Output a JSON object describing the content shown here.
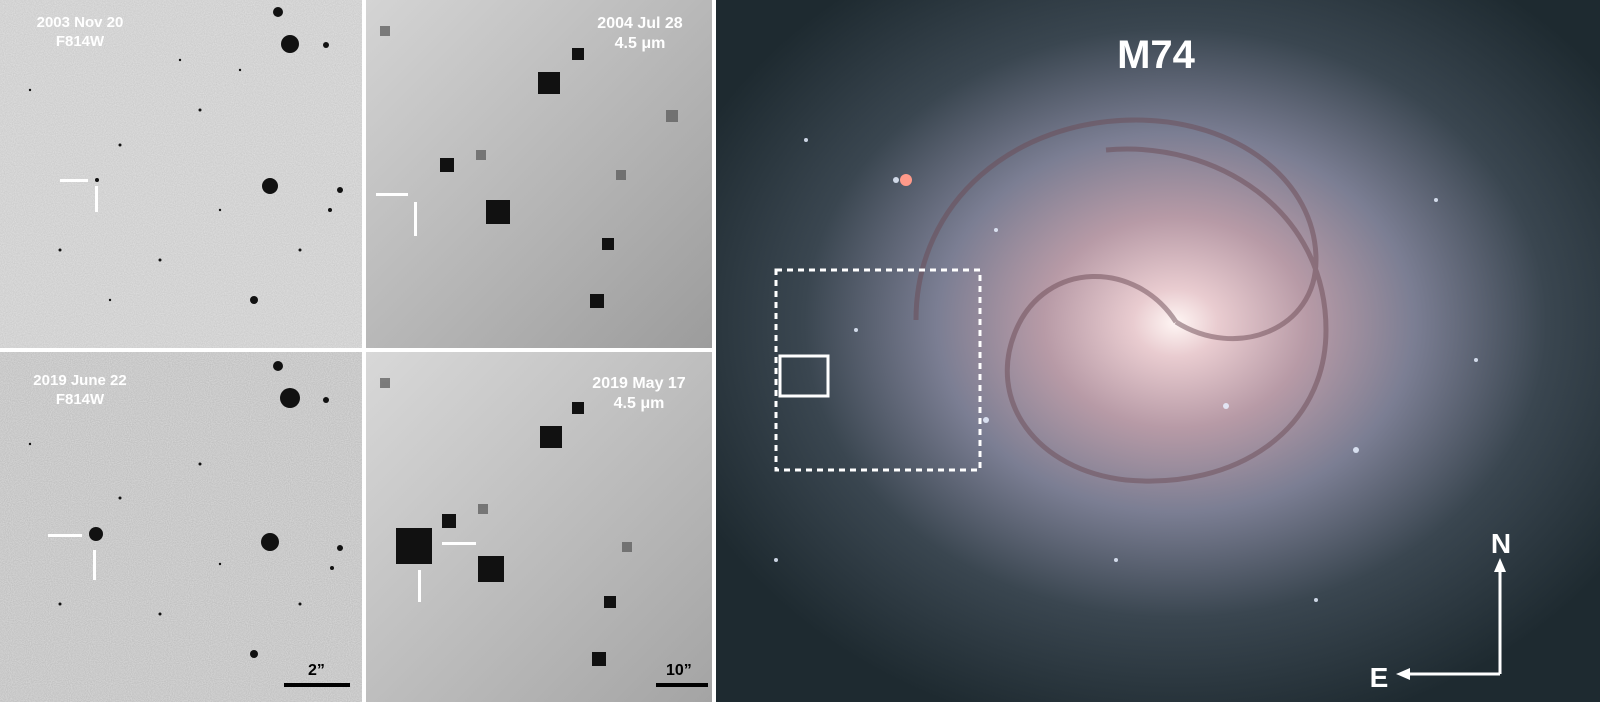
{
  "panels": {
    "top_left": {
      "line1": "2003 Nov 20",
      "line2": "F814W"
    },
    "top_middle": {
      "line1": "2004 Jul 28",
      "line2": "4.5 μm"
    },
    "bottom_left": {
      "line1": "2019 June 22",
      "line2": "F814W",
      "scale": "2”"
    },
    "bottom_middle": {
      "line1": "2019 May 17",
      "line2": "4.5 μm",
      "scale": "10”"
    }
  },
  "galaxy": {
    "name": "M74",
    "compass_north": "N",
    "compass_east": "E"
  },
  "colors": {
    "divider": "#ffffff",
    "label": "#ffffff",
    "sky_background": "#1f2a30"
  }
}
